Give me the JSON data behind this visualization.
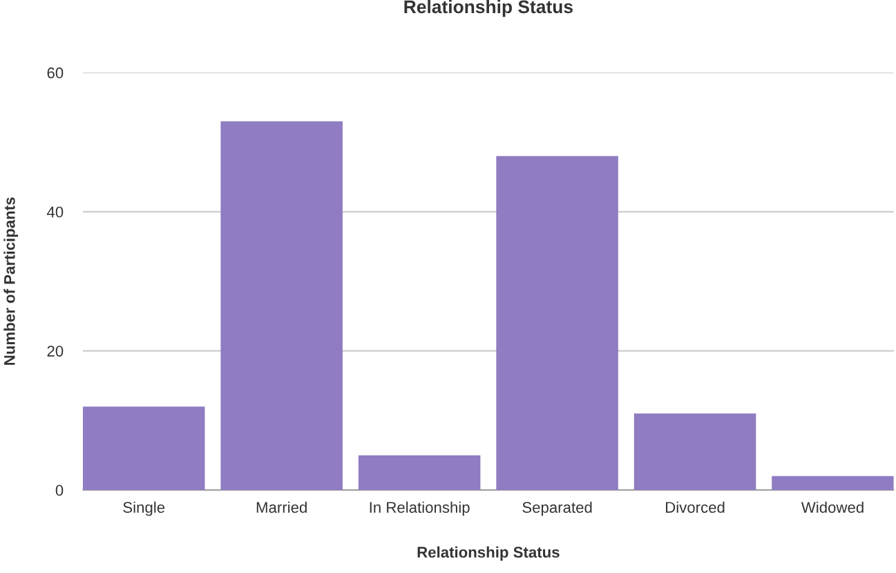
{
  "chart_data": {
    "type": "bar",
    "title": "Relationship Status",
    "xlabel": "Relationship Status",
    "ylabel": "Number of Participants",
    "categories": [
      "Single",
      "Married",
      "In Relationship",
      "Separated",
      "Divorced",
      "Widowed"
    ],
    "values": [
      12,
      53,
      5,
      48,
      11,
      2
    ],
    "color": "#907cc2",
    "ylim": [
      0,
      60
    ],
    "yticks": [
      0,
      20,
      40,
      60
    ],
    "grid": "y",
    "legend": false
  }
}
